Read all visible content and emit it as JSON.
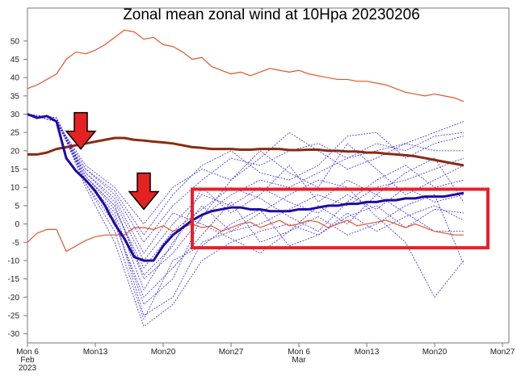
{
  "chart_data": {
    "type": "line",
    "title": "Zonal mean zonal wind at 10Hpa 20230206",
    "xlabel": "",
    "ylabel": "",
    "xlim_days": [
      0,
      49
    ],
    "ylim": [
      -32.5,
      59
    ],
    "x_ticks": [
      {
        "day": 0,
        "label": "Mon 6",
        "sub": "Feb",
        "sub2": "2023"
      },
      {
        "day": 7,
        "label": "Mon13"
      },
      {
        "day": 14,
        "label": "Mon20"
      },
      {
        "day": 21,
        "label": "Mon27"
      },
      {
        "day": 28,
        "label": "Mon 6",
        "sub": "Mar"
      },
      {
        "day": 35,
        "label": "Mon13"
      },
      {
        "day": 42,
        "label": "Mon20"
      },
      {
        "day": 49,
        "label": "Mon27"
      }
    ],
    "y_ticks": [
      50,
      45,
      40,
      35,
      30,
      25,
      20,
      15,
      10,
      5,
      0,
      -5,
      -10,
      -15,
      -20,
      -25,
      -30
    ],
    "colors": {
      "member": "#3a2be0",
      "mean": "#1e0aa0",
      "clim": "#8b2a0e",
      "extreme": "#e0572a",
      "box": "#e8202a",
      "arrow": "#e52222"
    },
    "series_daily": [
      {
        "name": "max",
        "values": [
          37,
          38,
          39.5,
          41,
          45,
          47,
          46.5,
          47.5,
          49,
          51,
          53,
          52.5,
          50.5,
          51,
          49,
          48.5,
          47,
          45,
          45.5,
          43,
          42,
          41,
          41.5,
          40.5,
          41.5,
          42.5,
          42,
          41.5,
          42,
          41,
          40.5,
          40,
          39.5,
          39.5,
          39,
          39,
          38.5,
          38,
          37,
          36,
          35.5,
          35,
          35.5,
          35,
          34.5,
          33.5
        ]
      },
      {
        "name": "min",
        "values": [
          -5,
          -2.5,
          -1.5,
          -1.5,
          -7.5,
          -6,
          -4.5,
          -3.5,
          -3,
          -3,
          -3,
          -1,
          -1,
          -1.5,
          -0.5,
          -2,
          -1,
          0,
          -1,
          -0.5,
          -2,
          -1,
          0,
          0.5,
          -1,
          0,
          1,
          -0.5,
          0,
          1,
          0.5,
          -1,
          0,
          1,
          -0.5,
          0,
          0.5,
          1,
          0,
          -1,
          0,
          -1,
          -2,
          -2.5,
          -3,
          -3
        ]
      },
      {
        "name": "climatology",
        "values": [
          19,
          19,
          19.5,
          20.5,
          21,
          21.5,
          22,
          22.5,
          23,
          23.5,
          23.5,
          23,
          22.8,
          22.5,
          22.3,
          22,
          21.5,
          21,
          20.8,
          20.5,
          20.5,
          20.5,
          20.3,
          20.3,
          20.5,
          20.5,
          20.5,
          20.2,
          20.2,
          20.3,
          20.3,
          20,
          20,
          19.8,
          19.8,
          19.5,
          19.5,
          19.2,
          19,
          18.8,
          18.5,
          18,
          17.5,
          17,
          16.5,
          16
        ]
      },
      {
        "name": "ensemble-mean",
        "values": [
          30,
          29,
          29.5,
          28,
          18,
          14.5,
          12,
          9,
          5,
          0,
          -4,
          -9,
          -10,
          -10,
          -6,
          -3,
          -1,
          1,
          2.5,
          3.5,
          4,
          4.5,
          4.5,
          4,
          4,
          3.5,
          3.5,
          3.5,
          4,
          4,
          4.5,
          5,
          5,
          5.5,
          5.5,
          6,
          6,
          6.5,
          6.5,
          7,
          7,
          7.5,
          7.5,
          7.5,
          8,
          8.5
        ]
      }
    ],
    "member_days": [
      0,
      3,
      6,
      9,
      12,
      15,
      18,
      21,
      24,
      27,
      30,
      33,
      36,
      39,
      42,
      45
    ],
    "members": [
      [
        30,
        29,
        13,
        5,
        -15,
        -8,
        2,
        8,
        12,
        10,
        14,
        18,
        20,
        22,
        25,
        28
      ],
      [
        30,
        28,
        12,
        2,
        -25,
        -20,
        -5,
        -2,
        0,
        4,
        8,
        5,
        10,
        12,
        15,
        18
      ],
      [
        30,
        28,
        15,
        8,
        -5,
        5,
        12,
        18,
        16,
        20,
        22,
        18,
        22,
        20,
        24,
        25
      ],
      [
        30,
        29,
        10,
        -5,
        -28,
        -22,
        -10,
        -5,
        -2,
        0,
        -3,
        2,
        5,
        -1,
        4,
        3
      ],
      [
        30,
        28,
        14,
        6,
        -10,
        0,
        8,
        5,
        10,
        6,
        3,
        8,
        4,
        10,
        6,
        8
      ],
      [
        30,
        29,
        11,
        0,
        -20,
        -12,
        -3,
        6,
        -5,
        -2,
        5,
        0,
        8,
        3,
        -2,
        -2
      ],
      [
        30,
        28,
        16,
        10,
        0,
        10,
        15,
        12,
        18,
        25,
        20,
        15,
        18,
        22,
        20,
        20
      ],
      [
        30,
        28,
        12,
        3,
        -18,
        -5,
        5,
        -2,
        3,
        8,
        12,
        10,
        2,
        -5,
        -20,
        -10
      ],
      [
        30,
        29,
        13,
        4,
        -12,
        -2,
        4,
        10,
        7,
        2,
        -2,
        6,
        12,
        16,
        10,
        12
      ],
      [
        30,
        28,
        14,
        7,
        -8,
        3,
        0,
        -4,
        -8,
        -2,
        2,
        -3,
        0,
        5,
        8,
        -11
      ],
      [
        30,
        29,
        12,
        1,
        -22,
        -15,
        2,
        12,
        20,
        14,
        10,
        22,
        15,
        8,
        12,
        16
      ],
      [
        30,
        28,
        15,
        9,
        -3,
        8,
        16,
        20,
        14,
        12,
        16,
        24,
        25,
        18,
        22,
        24
      ],
      [
        30,
        29,
        11,
        -2,
        -26,
        -10,
        -6,
        0,
        4,
        -6,
        -3,
        3,
        -2,
        2,
        5,
        1
      ],
      [
        30,
        28,
        13,
        5,
        -14,
        -6,
        10,
        3,
        8,
        16,
        6,
        12,
        8,
        14,
        18,
        6
      ]
    ],
    "annotation_box": {
      "day_range": [
        17,
        47.5
      ],
      "value_range": [
        -6.5,
        9.5
      ]
    },
    "arrows": [
      {
        "day": 5.5,
        "value": 20.5
      },
      {
        "day": 12,
        "value": 4
      }
    ],
    "grid": false,
    "legend": "none"
  }
}
